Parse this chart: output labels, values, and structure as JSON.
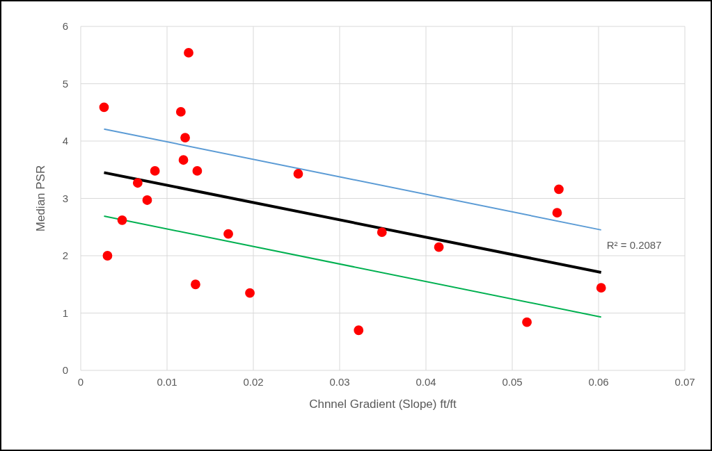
{
  "chart_data": {
    "type": "scatter",
    "xlabel": "Chnnel Gradient (Slope) ft/ft",
    "ylabel": "Median PSR",
    "xlim": [
      0,
      0.07
    ],
    "xticks": [
      0,
      0.01,
      0.02,
      0.03,
      0.04,
      0.05,
      0.06,
      0.07
    ],
    "ylim": [
      0,
      6
    ],
    "yticks": [
      0,
      1,
      2,
      3,
      4,
      5,
      6
    ],
    "grid": true,
    "annotations": [
      "R² = 0.2087"
    ],
    "series": [
      {
        "color": "#ff0000",
        "marker": "circle",
        "x": [
          0.0027,
          0.0031,
          0.0048,
          0.0066,
          0.0077,
          0.0086,
          0.0116,
          0.0119,
          0.0121,
          0.0125,
          0.0133,
          0.0135,
          0.0171,
          0.0196,
          0.0252,
          0.0322,
          0.0349,
          0.0415,
          0.0517,
          0.0552,
          0.0554,
          0.0603
        ],
        "values": [
          4.59,
          2.0,
          2.62,
          3.27,
          2.97,
          3.48,
          4.51,
          3.67,
          4.06,
          5.54,
          1.5,
          3.48,
          2.38,
          1.35,
          3.43,
          0.7,
          2.41,
          2.15,
          0.84,
          2.75,
          3.16,
          1.44
        ]
      },
      {
        "type": "line",
        "color": "#5b9bd5",
        "x": [
          0.0027,
          0.0603
        ],
        "values": [
          4.21,
          2.45
        ]
      },
      {
        "type": "line",
        "color": "#000000",
        "x": [
          0.0027,
          0.0603
        ],
        "values": [
          3.45,
          1.71
        ]
      },
      {
        "type": "line",
        "color": "#00b050",
        "x": [
          0.0027,
          0.0603
        ],
        "values": [
          2.69,
          0.93
        ]
      }
    ]
  }
}
